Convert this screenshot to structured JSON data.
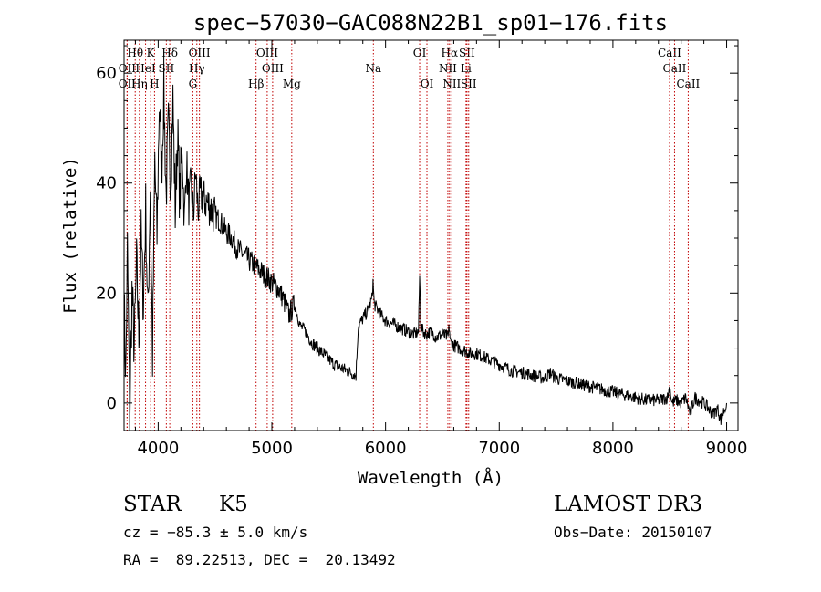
{
  "chart_data": {
    "type": "line",
    "title": "spec−57030−GAC088N22B1_sp01−176.fits",
    "xlabel": "Wavelength (Å)",
    "ylabel": "Flux (relative)",
    "xlim": [
      3700,
      9100
    ],
    "ylim": [
      -5,
      66
    ],
    "x_ticks": [
      4000,
      5000,
      6000,
      7000,
      8000,
      9000
    ],
    "y_ticks": [
      0,
      20,
      40,
      60
    ],
    "series": [
      {
        "name": "flux",
        "x": [
          3700,
          3715,
          3730,
          3750,
          3770,
          3790,
          3810,
          3830,
          3850,
          3870,
          3890,
          3910,
          3930,
          3950,
          3970,
          3990,
          4010,
          4030,
          4050,
          4070,
          4090,
          4110,
          4130,
          4150,
          4170,
          4190,
          4210,
          4230,
          4250,
          4270,
          4290,
          4310,
          4330,
          4350,
          4370,
          4400,
          4450,
          4500,
          4550,
          4600,
          4650,
          4700,
          4750,
          4800,
          4850,
          4900,
          4950,
          5000,
          5050,
          5100,
          5150,
          5200,
          5250,
          5300,
          5350,
          5400,
          5450,
          5500,
          5550,
          5600,
          5650,
          5700,
          5740,
          5760,
          5790,
          5820,
          5850,
          5880,
          5890,
          5900,
          5930,
          5960,
          6000,
          6050,
          6100,
          6150,
          6200,
          6250,
          6290,
          6300,
          6310,
          6330,
          6360,
          6400,
          6450,
          6500,
          6550,
          6560,
          6570,
          6600,
          6650,
          6700,
          6750,
          6800,
          6850,
          6900,
          7000,
          7100,
          7200,
          7300,
          7400,
          7450,
          7500,
          7600,
          7700,
          7800,
          7900,
          8000,
          8100,
          8200,
          8300,
          8400,
          8480,
          8500,
          8520,
          8560,
          8600,
          8640,
          8680,
          8720,
          8760,
          8800,
          8840,
          8880,
          8920,
          8950,
          9000
        ],
        "y": [
          18,
          5,
          28,
          -3,
          20,
          10,
          25,
          12,
          30,
          18,
          35,
          15,
          40,
          8,
          44,
          30,
          55,
          42,
          57,
          38,
          50,
          41,
          55,
          35,
          49,
          37,
          47,
          33,
          44,
          36,
          40,
          34,
          42,
          35,
          38,
          37,
          36,
          34,
          33,
          31,
          30,
          28,
          27,
          26,
          25,
          24,
          23,
          22,
          21,
          19,
          16,
          18,
          14,
          13,
          11,
          10,
          9,
          8,
          7,
          6.5,
          6,
          5.5,
          5,
          14,
          15,
          16,
          17,
          19,
          22,
          18,
          17,
          16,
          15,
          14.5,
          14,
          13.5,
          13,
          12.5,
          13,
          23,
          14,
          13,
          12.5,
          13,
          12,
          12.5,
          12,
          14,
          11,
          10.5,
          10,
          9.5,
          9,
          9,
          8.5,
          8,
          7,
          6,
          5.5,
          5,
          4.5,
          5.5,
          4.5,
          4,
          3.5,
          3,
          2.5,
          2,
          1.5,
          1,
          0.5,
          0.5,
          1,
          3,
          0,
          0.5,
          0,
          1,
          -2,
          1,
          0.5,
          0,
          -1,
          -2,
          -1,
          -3,
          0
        ]
      }
    ],
    "line_markers": [
      {
        "label": "Hθ",
        "wavelength": 3798,
        "row": 1
      },
      {
        "label": "K",
        "wavelength": 3934,
        "row": 1
      },
      {
        "label": "Hδ",
        "wavelength": 4102,
        "row": 1
      },
      {
        "label": "OIII",
        "wavelength": 4363,
        "row": 1
      },
      {
        "label": "OIII",
        "wavelength": 4959,
        "row": 1
      },
      {
        "label": "OI",
        "wavelength": 6300,
        "row": 1
      },
      {
        "label": "Hα",
        "wavelength": 6563,
        "row": 1
      },
      {
        "label": "SII",
        "wavelength": 6716,
        "row": 1
      },
      {
        "label": "CaII",
        "wavelength": 8498,
        "row": 1
      },
      {
        "label": "OII",
        "wavelength": 3727,
        "row": 2
      },
      {
        "label": "HeI",
        "wavelength": 3889,
        "row": 2
      },
      {
        "label": "SII",
        "wavelength": 4072,
        "row": 2
      },
      {
        "label": "Hγ",
        "wavelength": 4340,
        "row": 2
      },
      {
        "label": "OIII",
        "wavelength": 5007,
        "row": 2
      },
      {
        "label": "Na",
        "wavelength": 5893,
        "row": 2
      },
      {
        "label": "NII",
        "wavelength": 6548,
        "row": 2
      },
      {
        "label": "Li",
        "wavelength": 6708,
        "row": 2
      },
      {
        "label": "CaII",
        "wavelength": 8542,
        "row": 2
      },
      {
        "label": "OII",
        "wavelength": 3727,
        "row": 3
      },
      {
        "label": "Hη",
        "wavelength": 3835,
        "row": 3
      },
      {
        "label": "H",
        "wavelength": 3968,
        "row": 3
      },
      {
        "label": "G",
        "wavelength": 4305,
        "row": 3
      },
      {
        "label": "Hβ",
        "wavelength": 4861,
        "row": 3
      },
      {
        "label": "Mg",
        "wavelength": 5175,
        "row": 3
      },
      {
        "label": "OI",
        "wavelength": 6364,
        "row": 3
      },
      {
        "label": "NII",
        "wavelength": 6583,
        "row": 3
      },
      {
        "label": "SII",
        "wavelength": 6731,
        "row": 3
      },
      {
        "label": "CaII",
        "wavelength": 8662,
        "row": 3
      }
    ]
  },
  "info": {
    "class": "STAR",
    "subclass": "K5",
    "survey": "LAMOST DR3",
    "cz": "cz = −85.3 ± 5.0 km/s",
    "obs_date": "Obs−Date: 20150107",
    "coords": "RA =  89.22513, DEC =  20.13492"
  }
}
